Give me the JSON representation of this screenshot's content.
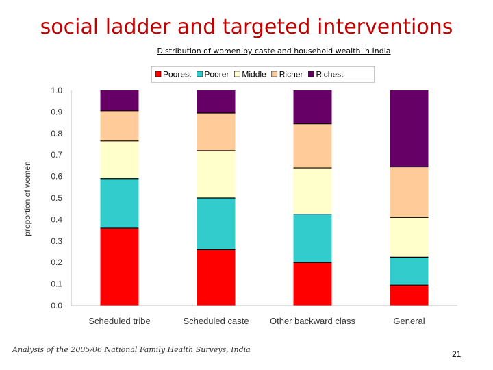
{
  "slide": {
    "title": "social ladder and targeted interventions",
    "footer": "Analysis of the 2005/06 National Family Health Surveys, India",
    "page_number": "21"
  },
  "chart_data": {
    "type": "bar",
    "stacked": true,
    "title": "Distribution of women by caste and household wealth in India",
    "xlabel": "",
    "ylabel": "proportion of women",
    "ylim": [
      0,
      1.0
    ],
    "yticks": [
      "0.0",
      "0.1",
      "0.2",
      "0.3",
      "0.4",
      "0.5",
      "0.6",
      "0.7",
      "0.8",
      "0.9",
      "1.0"
    ],
    "legend_position": "top",
    "categories": [
      "Scheduled tribe",
      "Scheduled caste",
      "Other backward class",
      "General"
    ],
    "series": [
      {
        "name": "Poorest",
        "color": "#ff0000",
        "values": [
          0.36,
          0.26,
          0.2,
          0.095
        ]
      },
      {
        "name": "Poorer",
        "color": "#33cccc",
        "values": [
          0.23,
          0.24,
          0.225,
          0.13
        ]
      },
      {
        "name": "Middle",
        "color": "#ffffcc",
        "values": [
          0.175,
          0.22,
          0.215,
          0.185
        ]
      },
      {
        "name": "Richer",
        "color": "#ffcc99",
        "values": [
          0.14,
          0.175,
          0.205,
          0.235
        ]
      },
      {
        "name": "Richest",
        "color": "#660066",
        "values": [
          0.095,
          0.105,
          0.155,
          0.355
        ]
      }
    ]
  }
}
